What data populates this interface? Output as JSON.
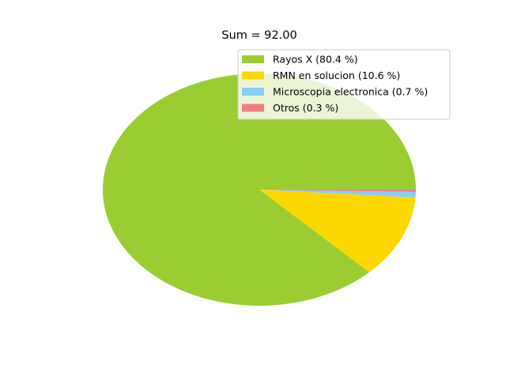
{
  "chart_data": {
    "type": "pie",
    "title": "Sum = 92.00",
    "slices": [
      {
        "label": "Rayos X (80.4 %)",
        "value": 80.4,
        "color": "#9acd32"
      },
      {
        "label": "RMN en solucion (10.6 %)",
        "value": 10.6,
        "color": "#ffd700"
      },
      {
        "label": "Microscopia electronica (0.7 %)",
        "value": 0.7,
        "color": "#87cefa"
      },
      {
        "label": "Otros (0.3 %)",
        "value": 0.3,
        "color": "#f08080"
      }
    ],
    "start_angle_deg": 0,
    "direction": "counterclockwise",
    "legend_position": "upper-right"
  }
}
